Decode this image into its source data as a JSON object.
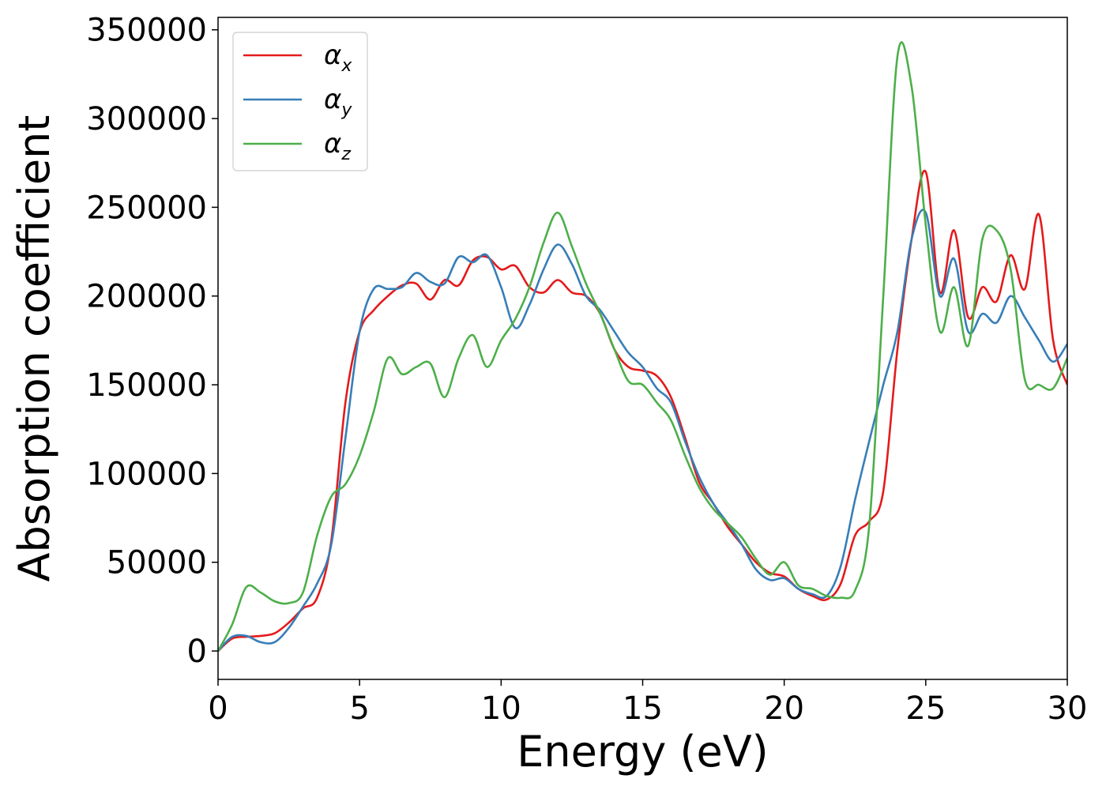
{
  "chart_data": {
    "type": "line",
    "title": "",
    "xlabel": "Energy (eV)",
    "ylabel": "Absorption coefficient",
    "xlim": [
      0,
      30
    ],
    "ylim": [
      -16000,
      357000
    ],
    "xticks": [
      0,
      5,
      10,
      15,
      20,
      25,
      30
    ],
    "yticks": [
      0,
      50000,
      100000,
      150000,
      200000,
      250000,
      300000,
      350000
    ],
    "grid": false,
    "legend_position": "top-left",
    "x": [
      0,
      0.5,
      1,
      1.5,
      2,
      2.5,
      3,
      3.5,
      4,
      4.5,
      5,
      5.5,
      6,
      6.5,
      7,
      7.5,
      8,
      8.5,
      9,
      9.5,
      10,
      10.5,
      11,
      11.5,
      12,
      12.5,
      13,
      13.5,
      14,
      14.5,
      15,
      15.5,
      16,
      16.5,
      17,
      17.5,
      18,
      18.5,
      19,
      19.5,
      20,
      20.5,
      21,
      21.5,
      22,
      22.5,
      23,
      23.5,
      24,
      24.5,
      25,
      25.5,
      26,
      26.5,
      27,
      27.5,
      28,
      28.5,
      29,
      29.5,
      30
    ],
    "series": [
      {
        "name": "α",
        "subscript": "x",
        "color": "#e41a1c",
        "values": [
          0,
          7000,
          8000,
          8500,
          10000,
          16000,
          24000,
          30000,
          62000,
          140000,
          180000,
          192000,
          200000,
          206000,
          207000,
          198000,
          209000,
          206000,
          220000,
          222000,
          215000,
          217000,
          205000,
          202000,
          209000,
          202000,
          200000,
          190000,
          170000,
          160000,
          158000,
          155000,
          143000,
          120000,
          95000,
          83000,
          70000,
          60000,
          50000,
          44000,
          42000,
          35000,
          31000,
          29000,
          38000,
          65000,
          73000,
          90000,
          170000,
          232000,
          270000,
          202000,
          237000,
          188000,
          205000,
          197000,
          223000,
          204000,
          246000,
          175000,
          150000
        ]
      },
      {
        "name": "α",
        "subscript": "y",
        "color": "#377eb8",
        "values": [
          0,
          8000,
          8500,
          5000,
          5000,
          13000,
          25000,
          38000,
          60000,
          120000,
          180000,
          204000,
          204000,
          205000,
          213000,
          208000,
          207000,
          222000,
          219000,
          223000,
          205000,
          182000,
          195000,
          215000,
          229000,
          218000,
          200000,
          192000,
          180000,
          168000,
          160000,
          148000,
          140000,
          118000,
          98000,
          83000,
          72000,
          60000,
          46000,
          40000,
          41000,
          35000,
          32000,
          31000,
          48000,
          85000,
          118000,
          150000,
          180000,
          232000,
          247000,
          200000,
          221000,
          180000,
          190000,
          185000,
          200000,
          188000,
          175000,
          163000,
          173000
        ]
      },
      {
        "name": "α",
        "subscript": "z",
        "color": "#4daf4a",
        "values": [
          0,
          15000,
          36000,
          33000,
          28000,
          27000,
          33000,
          65000,
          87000,
          94000,
          110000,
          135000,
          165000,
          156000,
          160000,
          162000,
          143000,
          165000,
          178000,
          160000,
          175000,
          187000,
          205000,
          230000,
          247000,
          228000,
          207000,
          190000,
          170000,
          152000,
          150000,
          140000,
          130000,
          110000,
          92000,
          80000,
          72000,
          64000,
          52000,
          43000,
          50000,
          37000,
          35000,
          31000,
          30000,
          34000,
          70000,
          200000,
          335000,
          318000,
          240000,
          180000,
          205000,
          172000,
          232000,
          237000,
          215000,
          153000,
          150000,
          148000,
          165000
        ]
      }
    ]
  }
}
